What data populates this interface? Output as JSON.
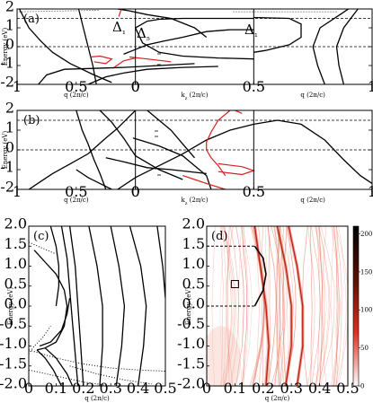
{
  "chart_data": [
    {
      "id": "a",
      "type": "line",
      "panel_label": "(a)",
      "ylabel": "Energy (eV)",
      "ylim": [
        -2,
        2
      ],
      "yticks": [
        "-2",
        "-1",
        "0",
        "1",
        "2"
      ],
      "segments": [
        {
          "xlabel": "q (2π/c)",
          "xlim": [
            1,
            0
          ],
          "xticks": [
            "1",
            "0.5",
            "0"
          ]
        },
        {
          "xlabel": "k_z (2π/c)",
          "xlim": [
            0,
            0.5
          ],
          "xticks": [
            "0",
            "0.5"
          ]
        },
        {
          "xlabel": "q (2π/c)",
          "xlim": [
            0.5,
            1
          ],
          "xticks": [
            "0.5",
            "1"
          ]
        }
      ],
      "dashed_lines_eV": [
        0,
        1.5
      ],
      "annotations": [
        "Δ₁",
        "Δ₅",
        "Δ₁"
      ],
      "series_colors": [
        "#000000",
        "#d42020"
      ],
      "black_curves": [
        [
          [
            0.98,
            2.0
          ],
          [
            0.9,
            1.0
          ],
          [
            0.8,
            0.3
          ],
          [
            0.7,
            -0.3
          ],
          [
            0.55,
            -0.9
          ],
          [
            0.35,
            -1.5
          ],
          [
            0.2,
            -1.9
          ]
        ],
        [
          [
            0.48,
            2.0
          ],
          [
            0.44,
            1.0
          ],
          [
            0.4,
            0.0
          ],
          [
            0.36,
            -1.0
          ],
          [
            0.33,
            -2.0
          ]
        ],
        [
          [
            0.82,
            -2.0
          ],
          [
            0.75,
            -1.5
          ],
          [
            0.6,
            -1.2
          ],
          [
            0.35,
            -1.15
          ],
          [
            0.1,
            -1.1
          ],
          [
            -0.1,
            -1.0
          ],
          [
            -0.25,
            -0.9
          ]
        ],
        [
          [
            0.15,
            2.0
          ],
          [
            0.05,
            1.9
          ],
          [
            -0.05,
            1.7
          ],
          [
            -0.15,
            1.5
          ],
          [
            -0.25,
            1.0
          ],
          [
            -0.3,
            0.5
          ]
        ],
        [
          [
            0.4,
            -2.0
          ],
          [
            0.25,
            -1.6
          ],
          [
            0.1,
            -1.4
          ],
          [
            -0.05,
            -1.2
          ],
          [
            -0.2,
            -1.1
          ],
          [
            -0.35,
            -1.05
          ]
        ],
        [
          [
            -0.5,
            1.5
          ],
          [
            -0.2,
            1.5
          ],
          [
            -0.1,
            1.45
          ],
          [
            -0.05,
            1.35
          ],
          [
            0,
            1.0
          ],
          [
            -0.03,
            0.2
          ],
          [
            -0.1,
            -0.3
          ],
          [
            -0.2,
            -0.5
          ],
          [
            -0.35,
            -0.6
          ],
          [
            -0.5,
            -0.65
          ]
        ],
        [
          [
            -0.5,
            0.9
          ],
          [
            -0.4,
            0.9
          ],
          [
            -0.3,
            0.8
          ],
          [
            -0.2,
            0.5
          ],
          [
            -0.12,
            0.3
          ],
          [
            -0.05,
            0.1
          ],
          [
            0.02,
            -0.2
          ],
          [
            0.1,
            -0.4
          ]
        ],
        [
          [
            -0.5,
            1.55
          ],
          [
            -0.65,
            1.5
          ],
          [
            -0.7,
            1.2
          ],
          [
            -0.7,
            0.5
          ],
          [
            -0.65,
            0.1
          ],
          [
            -0.55,
            -0.2
          ],
          [
            -0.5,
            -0.3
          ]
        ],
        [
          [
            -0.9,
            2.0
          ],
          [
            -0.78,
            1.0
          ],
          [
            -0.75,
            0.0
          ],
          [
            -0.77,
            -1.0
          ],
          [
            -0.8,
            -2.0
          ]
        ],
        [
          [
            -0.94,
            2.0
          ],
          [
            -0.88,
            1.0
          ],
          [
            -0.85,
            0.0
          ],
          [
            -0.86,
            -1.0
          ],
          [
            -0.88,
            -2.0
          ]
        ]
      ],
      "red_curves": [
        [
          [
            0.38,
            -0.55
          ],
          [
            0.3,
            -0.5
          ],
          [
            0.2,
            -0.65
          ],
          [
            0.25,
            -0.9
          ],
          [
            0.35,
            -0.8
          ]
        ],
        [
          [
            0.05,
            -0.55
          ],
          [
            -0.05,
            -0.65
          ],
          [
            -0.15,
            -0.8
          ]
        ],
        [
          [
            0.18,
            -1.1
          ],
          [
            0.1,
            -0.75
          ],
          [
            0.0,
            -0.6
          ]
        ],
        [
          [
            0.12,
            2.0
          ],
          [
            0.13,
            1.8
          ],
          [
            0.14,
            1.6
          ]
        ]
      ]
    },
    {
      "id": "b",
      "type": "line",
      "panel_label": "(b)",
      "ylabel": "Energy (eV)",
      "ylim": [
        -2,
        2
      ],
      "yticks": [
        "-2",
        "-1",
        "0",
        "1",
        "2"
      ],
      "segments": [
        {
          "xlabel": "q (2π/c)",
          "xlim": [
            1,
            0
          ],
          "xticks": [
            "1",
            "0.5",
            "0"
          ]
        },
        {
          "xlabel": "k_z (2π/c)",
          "xlim": [
            0,
            0.5
          ],
          "xticks": [
            "0",
            "0.5"
          ]
        },
        {
          "xlabel": "q (2π/c)",
          "xlim": [
            0.5,
            1
          ],
          "xticks": [
            "0.5",
            "1"
          ]
        }
      ],
      "dashed_lines_eV": [
        0,
        1.5
      ],
      "series_colors": [
        "#000000",
        "#d42020"
      ],
      "black_curves": [
        [
          [
            0.9,
            -2.0
          ],
          [
            0.8,
            -1.6
          ],
          [
            0.7,
            -1.2
          ],
          [
            0.55,
            -0.7
          ],
          [
            0.4,
            -0.2
          ],
          [
            0.25,
            0.6
          ],
          [
            0.15,
            1.1
          ],
          [
            0.05,
            1.7
          ],
          [
            0.0,
            2.0
          ]
        ],
        [
          [
            0.5,
            2.0
          ],
          [
            0.45,
            1.0
          ],
          [
            0.4,
            0.3
          ],
          [
            0.35,
            -0.5
          ],
          [
            0.3,
            -1.2
          ],
          [
            0.25,
            -2.0
          ]
        ],
        [
          [
            0.3,
            2.0
          ],
          [
            0.2,
            1.4
          ],
          [
            0.1,
            0.6
          ],
          [
            0.0,
            -0.3
          ],
          [
            -0.1,
            -1.0
          ],
          [
            -0.2,
            -1.5
          ]
        ],
        [
          [
            0.15,
            -2.0
          ],
          [
            0.0,
            -1.4
          ],
          [
            -0.1,
            -0.8
          ],
          [
            -0.2,
            -0.2
          ],
          [
            -0.3,
            0.5
          ],
          [
            -0.4,
            1.0
          ],
          [
            -0.5,
            1.3
          ],
          [
            -0.6,
            1.5
          ],
          [
            -0.7,
            1.3
          ],
          [
            -0.8,
            0.5
          ],
          [
            -0.88,
            -0.5
          ],
          [
            -0.95,
            -1.3
          ],
          [
            -1.0,
            -1.7
          ]
        ],
        [
          [
            0.02,
            0.6
          ],
          [
            -0.1,
            0.2
          ],
          [
            -0.2,
            -0.3
          ],
          [
            -0.25,
            -0.8
          ],
          [
            -0.3,
            -1.3
          ],
          [
            -0.32,
            -2.0
          ]
        ],
        [
          [
            0.25,
            -0.4
          ],
          [
            0.1,
            -0.6
          ],
          [
            -0.05,
            -0.9
          ],
          [
            -0.15,
            -1.0
          ],
          [
            -0.3,
            -1.2
          ]
        ],
        [
          [
            -0.05,
            2.0
          ],
          [
            -0.15,
            1.0
          ],
          [
            -0.2,
            0.3
          ],
          [
            -0.25,
            -0.4
          ]
        ],
        [
          [
            0.5,
            -1.0
          ],
          [
            0.4,
            -1.4
          ],
          [
            0.3,
            -1.7
          ],
          [
            0.2,
            -2.0
          ]
        ]
      ],
      "red_curves": [
        [
          [
            -0.4,
            2.0
          ],
          [
            -0.35,
            1.5
          ],
          [
            -0.32,
            0.9
          ],
          [
            -0.3,
            0.4
          ],
          [
            -0.3,
            0.0
          ],
          [
            -0.32,
            -0.4
          ],
          [
            -0.35,
            -0.8
          ],
          [
            -0.38,
            -1.3
          ]
        ],
        [
          [
            -0.35,
            -0.7
          ],
          [
            -0.45,
            -0.85
          ],
          [
            -0.5,
            -1.05
          ],
          [
            -0.45,
            -1.25
          ],
          [
            -0.35,
            -1.1
          ]
        ],
        [
          [
            -0.2,
            -1.3
          ],
          [
            -0.25,
            -1.5
          ],
          [
            -0.3,
            -1.7
          ],
          [
            -0.38,
            -2.0
          ]
        ],
        [
          [
            -0.42,
            2.0
          ],
          [
            -0.45,
            1.85
          ]
        ]
      ]
    },
    {
      "id": "c",
      "type": "line",
      "panel_label": "(c)",
      "xlabel": "q (2π/c)",
      "ylabel": "Energy (eV)",
      "xlim": [
        0,
        0.5
      ],
      "ylim": [
        -2,
        2
      ],
      "xticks": [
        "0",
        "0.1",
        "0.2",
        "0.3",
        "0.4",
        "0.5"
      ],
      "yticks": [
        "-2.0",
        "-1.5",
        "-1.0",
        "-0.5",
        "0.0",
        "0.5",
        "1.0",
        "1.5",
        "2.0"
      ],
      "series_colors": [
        "#000000"
      ],
      "solid_curves": [
        [
          [
            0.12,
            2.0
          ],
          [
            0.14,
            1.2
          ],
          [
            0.15,
            0.4
          ],
          [
            0.16,
            -0.4
          ],
          [
            0.17,
            -1.2
          ],
          [
            0.18,
            -2.0
          ]
        ],
        [
          [
            0.15,
            2.0
          ],
          [
            0.17,
            1.0
          ],
          [
            0.18,
            0.0
          ],
          [
            0.19,
            -1.0
          ],
          [
            0.2,
            -2.0
          ]
        ],
        [
          [
            0.22,
            2.0
          ],
          [
            0.25,
            1.0
          ],
          [
            0.27,
            0.0
          ],
          [
            0.27,
            -1.0
          ],
          [
            0.26,
            -2.0
          ]
        ],
        [
          [
            0.3,
            2.0
          ],
          [
            0.33,
            1.0
          ],
          [
            0.35,
            0.0
          ],
          [
            0.34,
            -1.0
          ],
          [
            0.32,
            -2.0
          ]
        ],
        [
          [
            0.37,
            2.0
          ],
          [
            0.41,
            1.0
          ],
          [
            0.43,
            0.0
          ],
          [
            0.42,
            -1.0
          ],
          [
            0.4,
            -2.0
          ]
        ],
        [
          [
            0.47,
            2.0
          ],
          [
            0.49,
            1.0
          ],
          [
            0.5,
            0.2
          ]
        ],
        [
          [
            0.08,
            2.0
          ],
          [
            0.1,
            1.5
          ],
          [
            0.11,
            1.0
          ],
          [
            0.11,
            0.5
          ],
          [
            0.1,
            0.0
          ]
        ],
        [
          [
            0.02,
            1.4
          ],
          [
            0.06,
            1.1
          ],
          [
            0.1,
            0.8
          ],
          [
            0.13,
            0.4
          ],
          [
            0.14,
            0.0
          ],
          [
            0.13,
            -0.5
          ],
          [
            0.1,
            -0.9
          ],
          [
            0.06,
            -1.05
          ],
          [
            0.03,
            -1.1
          ]
        ],
        [
          [
            0.04,
            -1.0
          ],
          [
            0.08,
            -0.9
          ],
          [
            0.12,
            -0.6
          ],
          [
            0.14,
            -0.2
          ],
          [
            0.15,
            0.2
          ]
        ],
        [
          [
            0.03,
            -1.1
          ],
          [
            0.06,
            -1.3
          ],
          [
            0.09,
            -1.6
          ],
          [
            0.12,
            -2.0
          ]
        ],
        [
          [
            0.06,
            -1.05
          ],
          [
            0.1,
            -1.3
          ],
          [
            0.14,
            -1.7
          ],
          [
            0.16,
            -2.0
          ]
        ]
      ],
      "dotted_curves": [
        [
          [
            0.0,
            1.6
          ],
          [
            0.05,
            1.45
          ],
          [
            0.1,
            1.3
          ]
        ],
        [
          [
            0.0,
            -1.1
          ],
          [
            0.1,
            -1.3
          ],
          [
            0.2,
            -1.45
          ],
          [
            0.3,
            -1.55
          ],
          [
            0.4,
            -1.6
          ],
          [
            0.5,
            -1.63
          ]
        ],
        [
          [
            0.15,
            -1.5
          ],
          [
            0.25,
            -1.7
          ],
          [
            0.35,
            -1.85
          ],
          [
            0.45,
            -1.95
          ]
        ],
        [
          [
            0.0,
            -1.6
          ],
          [
            0.1,
            -1.75
          ],
          [
            0.2,
            -1.9
          ],
          [
            0.3,
            -2.0
          ]
        ],
        [
          [
            0.0,
            -1.2
          ],
          [
            0.02,
            -1.0
          ],
          [
            0.05,
            -0.8
          ],
          [
            0.08,
            -0.5
          ]
        ]
      ]
    },
    {
      "id": "d",
      "type": "heatmap",
      "panel_label": "(d)",
      "xlabel": "q (2π/c)",
      "ylabel": "Energy (eV)",
      "xlim": [
        0,
        0.5
      ],
      "ylim": [
        -2,
        2
      ],
      "xticks": [
        "0",
        "0.1",
        "0.2",
        "0.3",
        "0.4",
        "0.5"
      ],
      "yticks": [
        "-2.0",
        "-1.5",
        "-1.0",
        "-0.5",
        "0.0",
        "0.5",
        "1.0",
        "1.5",
        "2.0"
      ],
      "colorbar": {
        "min": 0,
        "max": 200,
        "ticks": [
          "0",
          "50",
          "100",
          "150",
          "200"
        ],
        "colors": [
          "#ffffff",
          "#e03020",
          "#5a1000",
          "#000000"
        ]
      },
      "bright_ridges": [
        [
          [
            0.17,
            2.0
          ],
          [
            0.19,
            1.0
          ],
          [
            0.21,
            0.0
          ],
          [
            0.22,
            -1.0
          ],
          [
            0.21,
            -2.0
          ]
        ],
        [
          [
            0.25,
            2.0
          ],
          [
            0.28,
            1.0
          ],
          [
            0.3,
            0.0
          ],
          [
            0.3,
            -1.0
          ],
          [
            0.28,
            -2.0
          ]
        ],
        [
          [
            0.29,
            2.0
          ],
          [
            0.32,
            1.0
          ],
          [
            0.34,
            0.0
          ],
          [
            0.34,
            -1.0
          ],
          [
            0.32,
            -2.0
          ]
        ]
      ],
      "overlay_curve": [
        [
          0.17,
          1.5
        ],
        [
          0.2,
          1.2
        ],
        [
          0.21,
          0.8
        ],
        [
          0.2,
          0.4
        ],
        [
          0.17,
          0.0
        ]
      ],
      "overlay_dashed_eV": [
        1.5,
        0.0
      ],
      "marker_square": [
        0.1,
        0.55
      ]
    }
  ]
}
